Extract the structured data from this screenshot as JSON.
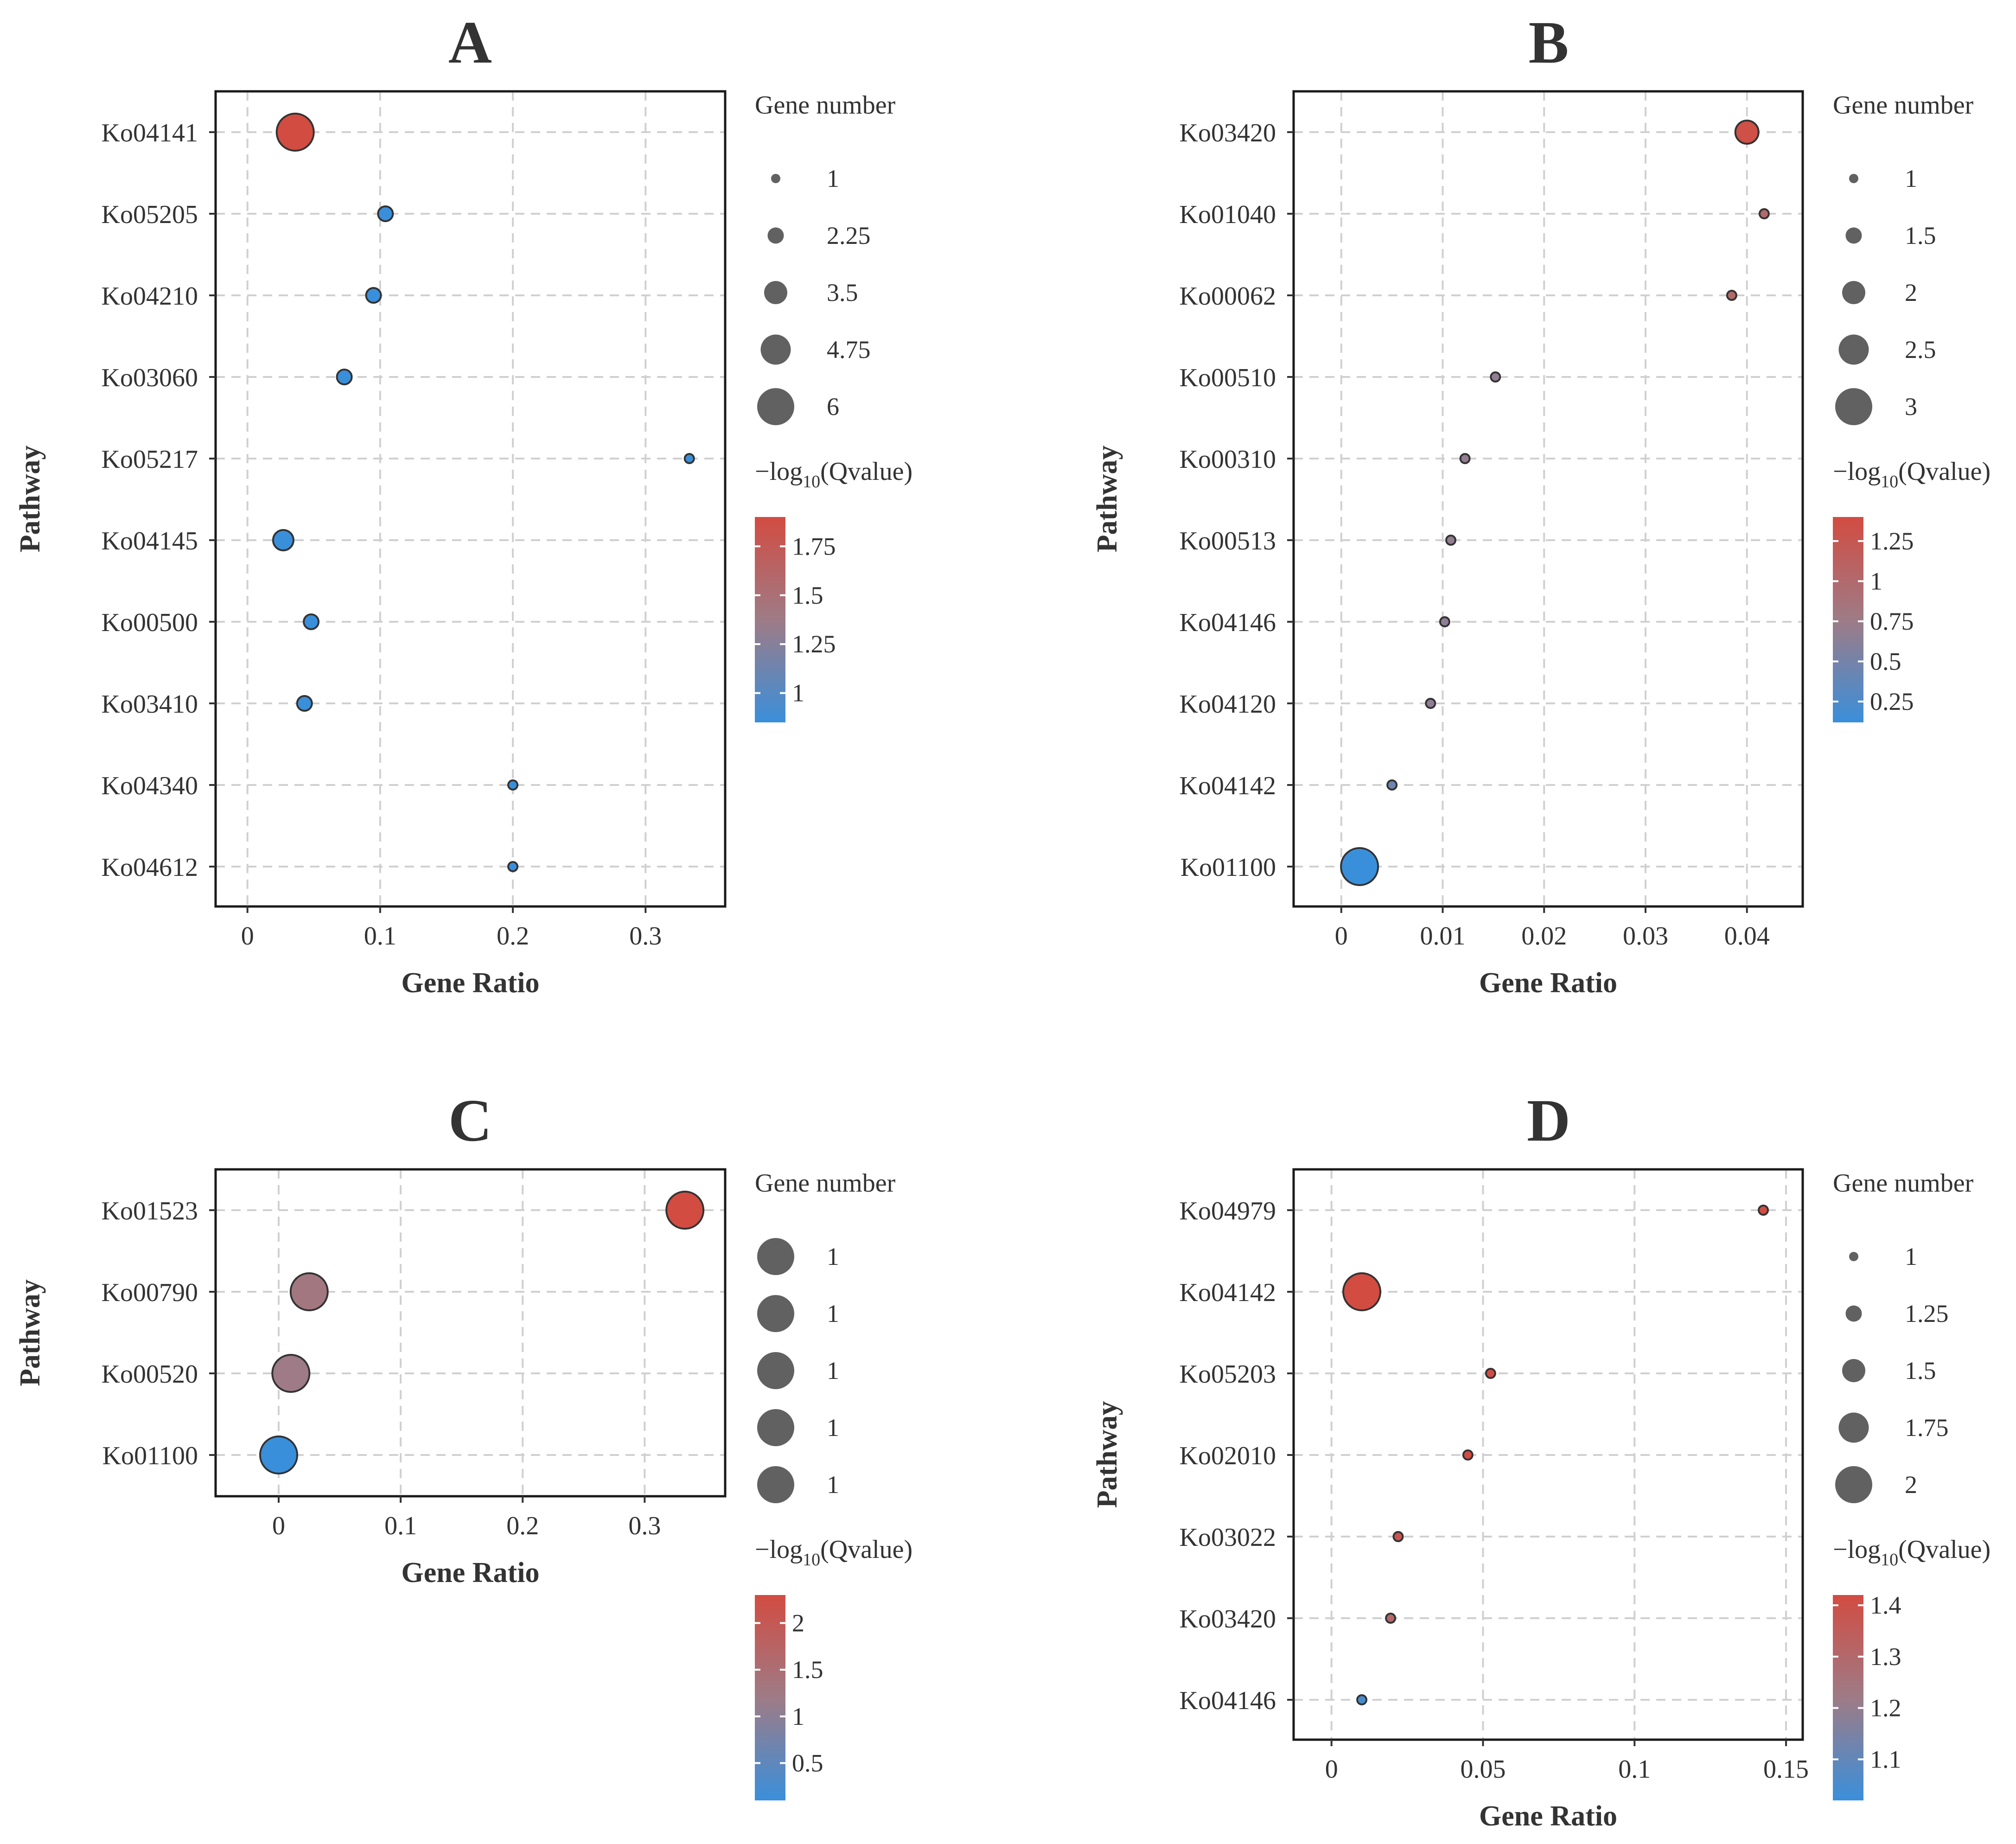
{
  "colors": {
    "low": "#3a8fdb",
    "high": "#d24c42",
    "mid": "#9e7b86",
    "legend_dot": "#616161"
  },
  "chart_data": [
    {
      "panel": "A",
      "type": "scatter",
      "xlabel": "Gene Ratio",
      "ylabel": "Pathway",
      "xlim": [
        -0.024,
        0.36
      ],
      "xticks": [
        0,
        0.1,
        0.2,
        0.3
      ],
      "xtick_labels": [
        "0",
        "0.1",
        "0.2",
        "0.3"
      ],
      "categories": [
        "Ko04141",
        "Ko05205",
        "Ko04210",
        "Ko03060",
        "Ko05217",
        "Ko04145",
        "Ko00500",
        "Ko03410",
        "Ko04340",
        "Ko04612"
      ],
      "points": [
        {
          "pathway": "Ko04141",
          "gene_ratio": 0.036,
          "gene_number": 6,
          "qvalue_log": 1.9
        },
        {
          "pathway": "Ko05205",
          "gene_ratio": 0.104,
          "gene_number": 2,
          "qvalue_log": 0.85
        },
        {
          "pathway": "Ko04210",
          "gene_ratio": 0.095,
          "gene_number": 2,
          "qvalue_log": 0.85
        },
        {
          "pathway": "Ko03060",
          "gene_ratio": 0.073,
          "gene_number": 2,
          "qvalue_log": 0.85
        },
        {
          "pathway": "Ko05217",
          "gene_ratio": 0.333,
          "gene_number": 1,
          "qvalue_log": 0.85
        },
        {
          "pathway": "Ko04145",
          "gene_ratio": 0.027,
          "gene_number": 3,
          "qvalue_log": 0.85
        },
        {
          "pathway": "Ko00500",
          "gene_ratio": 0.048,
          "gene_number": 2,
          "qvalue_log": 0.85
        },
        {
          "pathway": "Ko03410",
          "gene_ratio": 0.043,
          "gene_number": 2,
          "qvalue_log": 0.85
        },
        {
          "pathway": "Ko04340",
          "gene_ratio": 0.2,
          "gene_number": 1,
          "qvalue_log": 0.85
        },
        {
          "pathway": "Ko04612",
          "gene_ratio": 0.2,
          "gene_number": 1,
          "qvalue_log": 0.85
        }
      ],
      "size_legend": {
        "title": "Gene number",
        "values": [
          1,
          2.25,
          3.5,
          4.75,
          6
        ],
        "labels": [
          "1",
          "2.25",
          "3.5",
          "4.75",
          "6"
        ]
      },
      "color_legend": {
        "title_prefix": "−log",
        "title_sub": "10",
        "title_suffix": "(Qvalue)",
        "range": [
          0.85,
          1.9
        ],
        "ticks": [
          1.75,
          1.5,
          1.25,
          1
        ],
        "tick_labels": [
          "1.75",
          "1.5",
          "1.25",
          "1"
        ]
      }
    },
    {
      "panel": "B",
      "type": "scatter",
      "xlabel": "Gene Ratio",
      "ylabel": "Pathway",
      "xlim": [
        -0.0047,
        0.0455
      ],
      "xticks": [
        0,
        0.01,
        0.02,
        0.03,
        0.04
      ],
      "xtick_labels": [
        "0",
        "0.01",
        "0.02",
        "0.03",
        "0.04"
      ],
      "categories": [
        "Ko03420",
        "Ko01040",
        "Ko00062",
        "Ko00510",
        "Ko00310",
        "Ko00513",
        "Ko04146",
        "Ko04120",
        "Ko04142",
        "Ko01100"
      ],
      "points": [
        {
          "pathway": "Ko03420",
          "gene_ratio": 0.04,
          "gene_number": 2,
          "qvalue_log": 1.35
        },
        {
          "pathway": "Ko01040",
          "gene_ratio": 0.0417,
          "gene_number": 1,
          "qvalue_log": 1.0
        },
        {
          "pathway": "Ko00062",
          "gene_ratio": 0.0385,
          "gene_number": 1,
          "qvalue_log": 1.0
        },
        {
          "pathway": "Ko00510",
          "gene_ratio": 0.0152,
          "gene_number": 1,
          "qvalue_log": 0.68
        },
        {
          "pathway": "Ko00310",
          "gene_ratio": 0.0122,
          "gene_number": 1,
          "qvalue_log": 0.68
        },
        {
          "pathway": "Ko00513",
          "gene_ratio": 0.0108,
          "gene_number": 1,
          "qvalue_log": 0.68
        },
        {
          "pathway": "Ko04146",
          "gene_ratio": 0.0102,
          "gene_number": 1,
          "qvalue_log": 0.65
        },
        {
          "pathway": "Ko04120",
          "gene_ratio": 0.0088,
          "gene_number": 1,
          "qvalue_log": 0.65
        },
        {
          "pathway": "Ko04142",
          "gene_ratio": 0.005,
          "gene_number": 1,
          "qvalue_log": 0.45
        },
        {
          "pathway": "Ko01100",
          "gene_ratio": 0.0018,
          "gene_number": 3,
          "qvalue_log": 0.12
        }
      ],
      "size_legend": {
        "title": "Gene number",
        "values": [
          1,
          1.5,
          2,
          2.5,
          3
        ],
        "labels": [
          "1",
          "1.5",
          "2",
          "2.5",
          "3"
        ]
      },
      "color_legend": {
        "title_prefix": "−log",
        "title_sub": "10",
        "title_suffix": "(Qvalue)",
        "range": [
          0.12,
          1.4
        ],
        "ticks": [
          1.25,
          1,
          0.75,
          0.5,
          0.25
        ],
        "tick_labels": [
          "1.25",
          "1",
          "0.75",
          "0.5",
          "0.25"
        ]
      }
    },
    {
      "panel": "C",
      "type": "scatter",
      "xlabel": "Gene Ratio",
      "ylabel": "Pathway",
      "xlim": [
        -0.0517,
        0.366
      ],
      "xticks": [
        0,
        0.1,
        0.2,
        0.3
      ],
      "xtick_labels": [
        "0",
        "0.1",
        "0.2",
        "0.3"
      ],
      "categories": [
        "Ko01523",
        "Ko00790",
        "Ko00520",
        "Ko01100"
      ],
      "points": [
        {
          "pathway": "Ko01523",
          "gene_ratio": 0.333,
          "gene_number": 1,
          "qvalue_log": 2.3
        },
        {
          "pathway": "Ko00790",
          "gene_ratio": 0.025,
          "gene_number": 1,
          "qvalue_log": 1.3
        },
        {
          "pathway": "Ko00520",
          "gene_ratio": 0.01,
          "gene_number": 1,
          "qvalue_log": 1.2
        },
        {
          "pathway": "Ko01100",
          "gene_ratio": 0.0,
          "gene_number": 1,
          "qvalue_log": 0.1
        }
      ],
      "size_legend": {
        "title": "Gene number",
        "values": [
          1,
          1,
          1,
          1,
          1
        ],
        "labels": [
          "1",
          "1",
          "1",
          "1",
          "1"
        ]
      },
      "color_legend": {
        "title_prefix": "−log",
        "title_sub": "10",
        "title_suffix": "(Qvalue)",
        "range": [
          0.1,
          2.3
        ],
        "ticks": [
          2,
          1.5,
          1,
          0.5
        ],
        "tick_labels": [
          "2",
          "1.5",
          "1",
          "0.5"
        ]
      }
    },
    {
      "panel": "D",
      "type": "scatter",
      "xlabel": "Gene Ratio",
      "ylabel": "Pathway",
      "xlim": [
        -0.0125,
        0.1555
      ],
      "xticks": [
        0,
        0.05,
        0.1,
        0.15
      ],
      "xtick_labels": [
        "0",
        "0.05",
        "0.1",
        "0.15"
      ],
      "categories": [
        "Ko04979",
        "Ko04142",
        "Ko05203",
        "Ko02010",
        "Ko03022",
        "Ko03420",
        "Ko04146"
      ],
      "points": [
        {
          "pathway": "Ko04979",
          "gene_ratio": 0.1425,
          "gene_number": 1,
          "qvalue_log": 1.42
        },
        {
          "pathway": "Ko04142",
          "gene_ratio": 0.01,
          "gene_number": 2,
          "qvalue_log": 1.42
        },
        {
          "pathway": "Ko05203",
          "gene_ratio": 0.0525,
          "gene_number": 1,
          "qvalue_log": 1.42
        },
        {
          "pathway": "Ko02010",
          "gene_ratio": 0.045,
          "gene_number": 1,
          "qvalue_log": 1.42
        },
        {
          "pathway": "Ko03022",
          "gene_ratio": 0.022,
          "gene_number": 1,
          "qvalue_log": 1.38
        },
        {
          "pathway": "Ko03420",
          "gene_ratio": 0.0195,
          "gene_number": 1,
          "qvalue_log": 1.3
        },
        {
          "pathway": "Ko04146",
          "gene_ratio": 0.01,
          "gene_number": 1,
          "qvalue_log": 1.05
        }
      ],
      "size_legend": {
        "title": "Gene number",
        "values": [
          1,
          1.25,
          1.5,
          1.75,
          2
        ],
        "labels": [
          "1",
          "1.25",
          "1.5",
          "1.75",
          "2"
        ]
      },
      "color_legend": {
        "title_prefix": "−log",
        "title_sub": "10",
        "title_suffix": "(Qvalue)",
        "range": [
          1.02,
          1.42
        ],
        "ticks": [
          1.4,
          1.3,
          1.2,
          1.1
        ],
        "tick_labels": [
          "1.4",
          "1.3",
          "1.2",
          "1.1"
        ]
      }
    }
  ]
}
